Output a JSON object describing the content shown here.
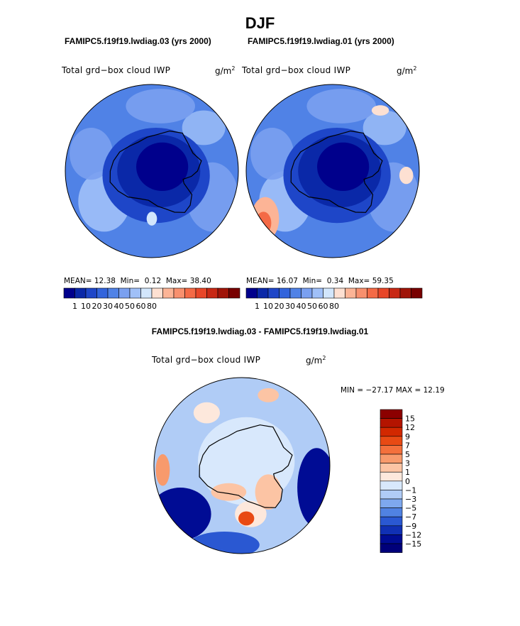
{
  "page": {
    "main_title": "DJF",
    "diff_title": "FAMIPC5.f19f19.lwdiag.03 - FAMIPC5.f19f19.lwdiag.01"
  },
  "chart_data": [
    {
      "type": "heatmap",
      "projection": "south-polar-stereographic",
      "title": "FAMIPC5.f19f19.lwdiag.03 (yrs 2000)",
      "variable": "Total grd−box cloud IWP",
      "units": "g/m",
      "units_sup": "2",
      "stats": {
        "mean_label": "MEAN=",
        "mean": "12.38",
        "min_label": "Min=",
        "min": "0.12",
        "max_label": "Max=",
        "max": "38.40"
      },
      "colorbar": {
        "orientation": "horizontal",
        "tick_labels": [
          "1",
          "10",
          "20",
          "30",
          "40",
          "50",
          "60",
          "80"
        ],
        "colors": [
          "#00008c",
          "#0a28a8",
          "#1e46c8",
          "#3264dc",
          "#5082e6",
          "#7aa0f0",
          "#a0c0f8",
          "#d2e6fc",
          "#fde0d2",
          "#fcb496",
          "#f8906e",
          "#f46a46",
          "#e84628",
          "#c82814",
          "#a01408",
          "#780000"
        ]
      }
    },
    {
      "type": "heatmap",
      "projection": "south-polar-stereographic",
      "title": "FAMIPC5.f19f19.lwdiag.01 (yrs 2000)",
      "variable": "Total grd−box cloud IWP",
      "units": "g/m",
      "units_sup": "2",
      "stats": {
        "mean_label": "MEAN=",
        "mean": "16.07",
        "min_label": "Min=",
        "min": "0.34",
        "max_label": "Max=",
        "max": "59.35"
      },
      "colorbar": {
        "orientation": "horizontal",
        "tick_labels": [
          "1",
          "10",
          "20",
          "30",
          "40",
          "50",
          "60",
          "80"
        ],
        "colors": [
          "#00008c",
          "#0a28a8",
          "#1e46c8",
          "#3264dc",
          "#5082e6",
          "#7aa0f0",
          "#a0c0f8",
          "#d2e6fc",
          "#fde0d2",
          "#fcb496",
          "#f8906e",
          "#f46a46",
          "#e84628",
          "#c82814",
          "#a01408",
          "#780000"
        ]
      }
    },
    {
      "type": "heatmap",
      "projection": "south-polar-stereographic",
      "title": "FAMIPC5.f19f19.lwdiag.03 - FAMIPC5.f19f19.lwdiag.01",
      "variable": "Total grd−box cloud IWP",
      "units": "g/m",
      "units_sup": "2",
      "stats": {
        "min_label": "MIN =",
        "min": "−27.17",
        "max_label": "MAX =",
        "max": "12.19"
      },
      "colorbar": {
        "orientation": "vertical",
        "tick_labels": [
          "15",
          "12",
          "9",
          "7",
          "5",
          "3",
          "1",
          "0",
          "−1",
          "−3",
          "−5",
          "−7",
          "−9",
          "−12",
          "−15"
        ],
        "colors": [
          "#8c0000",
          "#b41400",
          "#d22800",
          "#e84a14",
          "#f4703c",
          "#f89a6c",
          "#fcc4a4",
          "#fde8dc",
          "#d8e8fc",
          "#b0ccf6",
          "#7ea8ee",
          "#5082e2",
          "#2a58d2",
          "#1030b4",
          "#000c94",
          "#00007a"
        ]
      }
    }
  ]
}
